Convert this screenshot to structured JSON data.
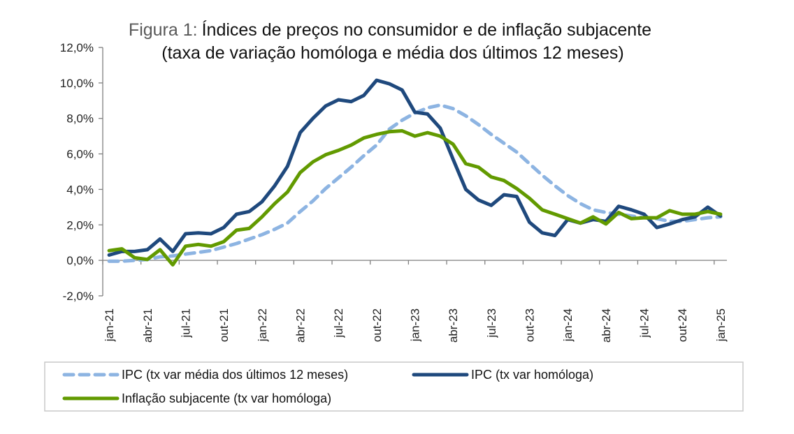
{
  "chart_data": {
    "type": "line",
    "title_prefix": "Figura 1:",
    "title": "Índices de preços no consumidor e de inflação subjacente",
    "subtitle": "(taxa de variação homóloga e média dos últimos 12 meses)",
    "xlabel": "",
    "ylabel": "",
    "ylim": [
      -2,
      12
    ],
    "y_ticks": [
      -2,
      0,
      2,
      4,
      6,
      8,
      10,
      12
    ],
    "y_tick_labels": [
      "-2,0%",
      "0,0%",
      "2,0%",
      "4,0%",
      "6,0%",
      "8,0%",
      "10,0%",
      "12,0%"
    ],
    "x": [
      "jan-21",
      "fev-21",
      "mar-21",
      "abr-21",
      "mai-21",
      "jun-21",
      "jul-21",
      "ago-21",
      "set-21",
      "out-21",
      "nov-21",
      "dez-21",
      "jan-22",
      "fev-22",
      "mar-22",
      "abr-22",
      "mai-22",
      "jun-22",
      "jul-22",
      "ago-22",
      "set-22",
      "out-22",
      "nov-22",
      "dez-22",
      "jan-23",
      "fev-23",
      "mar-23",
      "abr-23",
      "mai-23",
      "jun-23",
      "jul-23",
      "ago-23",
      "set-23",
      "out-23",
      "nov-23",
      "dez-23",
      "jan-24",
      "fev-24",
      "mar-24",
      "abr-24",
      "mai-24",
      "jun-24",
      "jul-24",
      "ago-24",
      "set-24",
      "out-24",
      "nov-24",
      "dez-24",
      "jan-25"
    ],
    "x_tick_labels": [
      "jan-21",
      "abr-21",
      "jul-21",
      "out-21",
      "jan-22",
      "abr-22",
      "jul-22",
      "out-22",
      "jan-23",
      "abr-23",
      "jul-23",
      "out-23",
      "jan-24",
      "abr-24",
      "jul-24",
      "out-24",
      "jan-25"
    ],
    "x_tick_label_step": 3,
    "grid": false,
    "legend_position": "bottom",
    "series": [
      {
        "name": "IPC (tx var média dos últimos 12 meses)",
        "color": "#8db4e2",
        "style": "dashed",
        "values": [
          -0.05,
          -0.05,
          0.0,
          0.05,
          0.2,
          0.25,
          0.35,
          0.45,
          0.55,
          0.75,
          0.95,
          1.2,
          1.45,
          1.75,
          2.1,
          2.75,
          3.35,
          4.05,
          4.65,
          5.25,
          5.9,
          6.5,
          7.4,
          7.9,
          8.3,
          8.6,
          8.75,
          8.55,
          8.15,
          7.65,
          7.1,
          6.6,
          6.1,
          5.45,
          4.8,
          4.2,
          3.65,
          3.2,
          2.85,
          2.7,
          2.6,
          2.5,
          2.4,
          2.35,
          2.2,
          2.2,
          2.3,
          2.4,
          2.45
        ]
      },
      {
        "name": "IPC (tx var homóloga)",
        "color": "#1f497d",
        "style": "solid",
        "values": [
          0.3,
          0.5,
          0.5,
          0.6,
          1.2,
          0.5,
          1.5,
          1.55,
          1.5,
          1.85,
          2.6,
          2.75,
          3.3,
          4.2,
          5.3,
          7.2,
          8.0,
          8.7,
          9.05,
          8.95,
          9.3,
          10.15,
          9.95,
          9.6,
          8.35,
          8.25,
          7.45,
          5.7,
          4.0,
          3.4,
          3.1,
          3.7,
          3.6,
          2.15,
          1.55,
          1.4,
          2.3,
          2.1,
          2.3,
          2.2,
          3.05,
          2.85,
          2.6,
          1.85,
          2.05,
          2.3,
          2.45,
          3.0,
          2.5
        ]
      },
      {
        "name": "Inflação subjacente (tx var homóloga)",
        "color": "#629a00",
        "style": "solid",
        "values": [
          0.55,
          0.65,
          0.15,
          0.05,
          0.6,
          -0.25,
          0.8,
          0.9,
          0.8,
          1.05,
          1.7,
          1.8,
          2.45,
          3.2,
          3.85,
          4.95,
          5.55,
          5.95,
          6.2,
          6.5,
          6.9,
          7.1,
          7.25,
          7.3,
          7.0,
          7.2,
          7.0,
          6.55,
          5.45,
          5.25,
          4.7,
          4.5,
          4.05,
          3.5,
          2.85,
          2.6,
          2.35,
          2.1,
          2.45,
          2.05,
          2.7,
          2.35,
          2.4,
          2.4,
          2.8,
          2.6,
          2.6,
          2.75,
          2.6
        ]
      }
    ]
  }
}
